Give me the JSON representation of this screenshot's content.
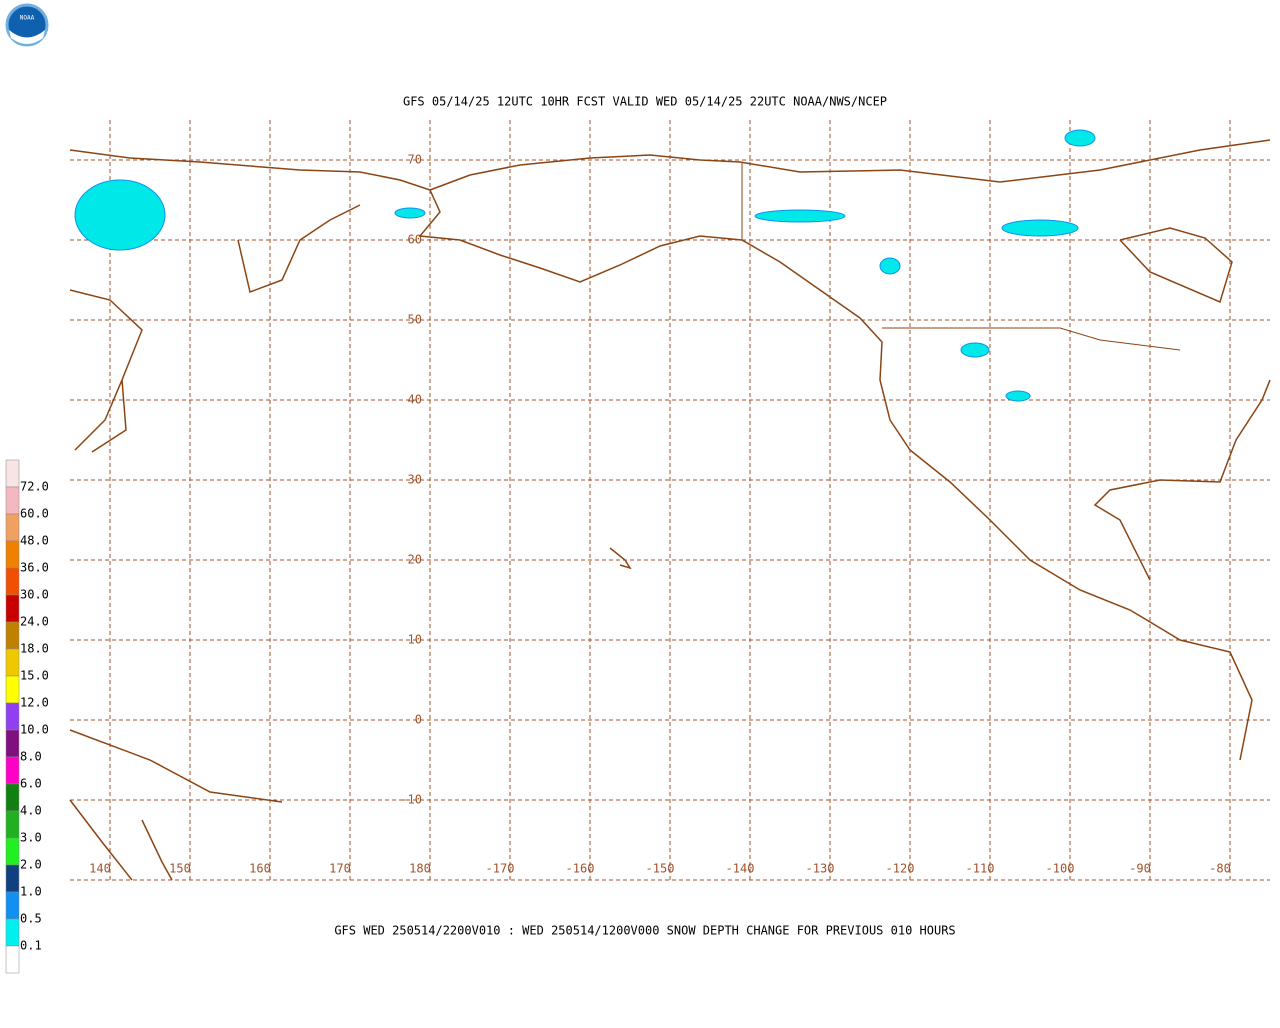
{
  "logo": "NOAA",
  "title": "GFS 05/14/25 12UTC 10HR FCST VALID WED 05/14/25 22UTC NOAA/NWS/NCEP",
  "caption": "GFS WED 250514/2200V010 : WED 250514/1200V000 SNOW DEPTH CHANGE FOR PREVIOUS 010 HOURS",
  "latitude_labels": [
    "70",
    "60",
    "50",
    "40",
    "30",
    "20",
    "10",
    "0",
    "-10"
  ],
  "longitude_labels": [
    "140",
    "150",
    "160",
    "170",
    "180",
    "-170",
    "-160",
    "-150",
    "-140",
    "-130",
    "-120",
    "-110",
    "-100",
    "-90",
    "-80"
  ],
  "legend": {
    "labels": [
      "72.0",
      "60.0",
      "48.0",
      "36.0",
      "30.0",
      "24.0",
      "18.0",
      "15.0",
      "12.0",
      "10.0",
      "8.0",
      "6.0",
      "4.0",
      "3.0",
      "2.0",
      "1.0",
      "0.5",
      "0.1"
    ],
    "colors": [
      "#f8e4e4",
      "#f4b8c0",
      "#f0a060",
      "#f08000",
      "#f05000",
      "#c80000",
      "#c08000",
      "#f0c800",
      "#ffff00",
      "#9040f0",
      "#801080",
      "#ff00c8",
      "#108010",
      "#20b020",
      "#20f020",
      "#104080",
      "#1090f0",
      "#00f0f0",
      "#ffffff"
    ]
  }
}
